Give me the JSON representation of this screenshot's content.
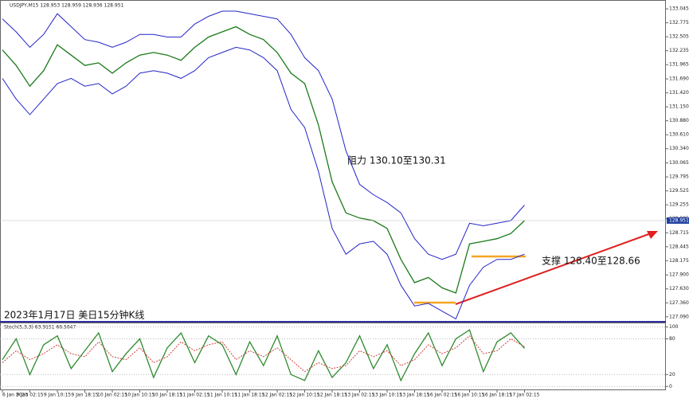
{
  "chart_data": [
    {
      "type": "line",
      "title": "USDJPY,M15  128.953 128.959 128.936 128.951",
      "categories": [
        "6 Jan 2023",
        null,
        "9 Jan 02:15",
        null,
        "9 Jan 10:15",
        null,
        "9 Jan 18:15",
        null,
        "10 Jan 02:15",
        null,
        "10 Jan 10:15",
        null,
        "10 Jan 18:15",
        null,
        "11 Jan 02:15",
        null,
        "11 Jan 10:15",
        null,
        "11 Jan 18:15",
        null,
        "12 Jan 02:15",
        null,
        "12 Jan 10:15",
        null,
        "12 Jan 18:15",
        null,
        "13 Jan 02:15",
        null,
        "13 Jan 10:15",
        null,
        "13 Jan 18:15",
        null,
        "16 Jan 02:15",
        null,
        "16 Jan 10:15",
        null,
        "16 Jan 18:15",
        null,
        "17 Jan 02:15"
      ],
      "series": [
        {
          "name": "USDJPY",
          "color": "#1a7a1a",
          "values": [
            132.25,
            131.95,
            131.55,
            131.85,
            132.35,
            132.15,
            131.95,
            132.0,
            131.8,
            132.0,
            132.15,
            132.2,
            132.15,
            132.05,
            132.3,
            132.5,
            132.6,
            132.7,
            132.55,
            132.45,
            132.2,
            131.8,
            131.6,
            130.8,
            129.7,
            129.1,
            129.0,
            128.95,
            128.8,
            128.2,
            127.75,
            127.85,
            127.65,
            127.55,
            128.5,
            128.55,
            128.6,
            128.7,
            128.95
          ]
        },
        {
          "name": "Upper band",
          "color": "#2525c8",
          "values": [
            132.85,
            132.6,
            132.3,
            132.55,
            132.95,
            132.7,
            132.45,
            132.4,
            132.3,
            132.4,
            132.55,
            132.55,
            132.5,
            132.5,
            132.75,
            132.9,
            133.0,
            133.0,
            132.95,
            132.9,
            132.85,
            132.55,
            132.1,
            131.85,
            131.3,
            130.3,
            129.65,
            129.45,
            129.3,
            129.1,
            128.6,
            128.3,
            128.2,
            128.3,
            128.9,
            128.85,
            128.9,
            128.95,
            129.25
          ]
        },
        {
          "name": "Lower band",
          "color": "#2525c8",
          "values": [
            131.7,
            131.3,
            131.0,
            131.3,
            131.6,
            131.7,
            131.55,
            131.6,
            131.4,
            131.55,
            131.8,
            131.85,
            131.8,
            131.7,
            131.85,
            132.1,
            132.2,
            132.3,
            132.25,
            132.1,
            131.85,
            131.1,
            130.75,
            129.9,
            128.8,
            128.3,
            128.5,
            128.55,
            128.3,
            127.7,
            127.3,
            127.35,
            127.2,
            127.05,
            127.7,
            128.05,
            128.2,
            128.2,
            128.3
          ]
        }
      ],
      "current_price": 128.951,
      "ylim": [
        127.01,
        133.2
      ],
      "yticks": [
        133.045,
        132.775,
        132.505,
        132.235,
        131.965,
        {
          "value": 131.69,
          "label": "131.690"
        },
        {
          "value": 131.42,
          "label": "131.420"
        },
        {
          "value": 131.15,
          "label": "131.150"
        },
        {
          "value": 130.88,
          "label": "130.880"
        },
        {
          "value": 130.61,
          "label": "130.610"
        },
        {
          "value": 130.34,
          "label": "130.340"
        },
        130.065,
        129.795,
        129.525,
        129.255,
        128.985,
        128.715,
        128.445,
        128.175,
        {
          "value": 127.9,
          "label": "127.900"
        },
        {
          "value": 127.63,
          "label": "127.630"
        },
        {
          "value": 127.36,
          "label": "127.360"
        },
        {
          "value": 127.09,
          "label": "127.090"
        }
      ],
      "grid": false,
      "annotations": [
        "阻力 130.10至130.31",
        "支撑 128.40至128.66",
        "2023年1月17日 美日15分钟K线"
      ]
    },
    {
      "type": "line",
      "title": "Stoch(5,3,3) 63.9151 66.5647",
      "series": [
        {
          "name": "Main",
          "color": "#2e8b2e",
          "values": [
            45,
            80,
            20,
            70,
            85,
            30,
            60,
            90,
            25,
            55,
            80,
            15,
            65,
            90,
            40,
            85,
            70,
            20,
            75,
            35,
            85,
            20,
            10,
            60,
            15,
            40,
            85,
            30,
            70,
            10,
            55,
            90,
            35,
            80,
            95,
            25,
            75,
            90,
            64
          ]
        },
        {
          "name": "Signal",
          "color": "#d04040",
          "values": [
            40,
            60,
            45,
            55,
            70,
            55,
            50,
            75,
            50,
            45,
            65,
            40,
            50,
            75,
            60,
            70,
            75,
            45,
            60,
            50,
            65,
            45,
            25,
            40,
            30,
            35,
            60,
            50,
            60,
            35,
            45,
            70,
            55,
            65,
            85,
            55,
            60,
            80,
            67
          ]
        }
      ],
      "ylim": [
        -5,
        106
      ],
      "yticks": [
        100,
        80,
        20,
        0
      ],
      "grid": true
    }
  ]
}
